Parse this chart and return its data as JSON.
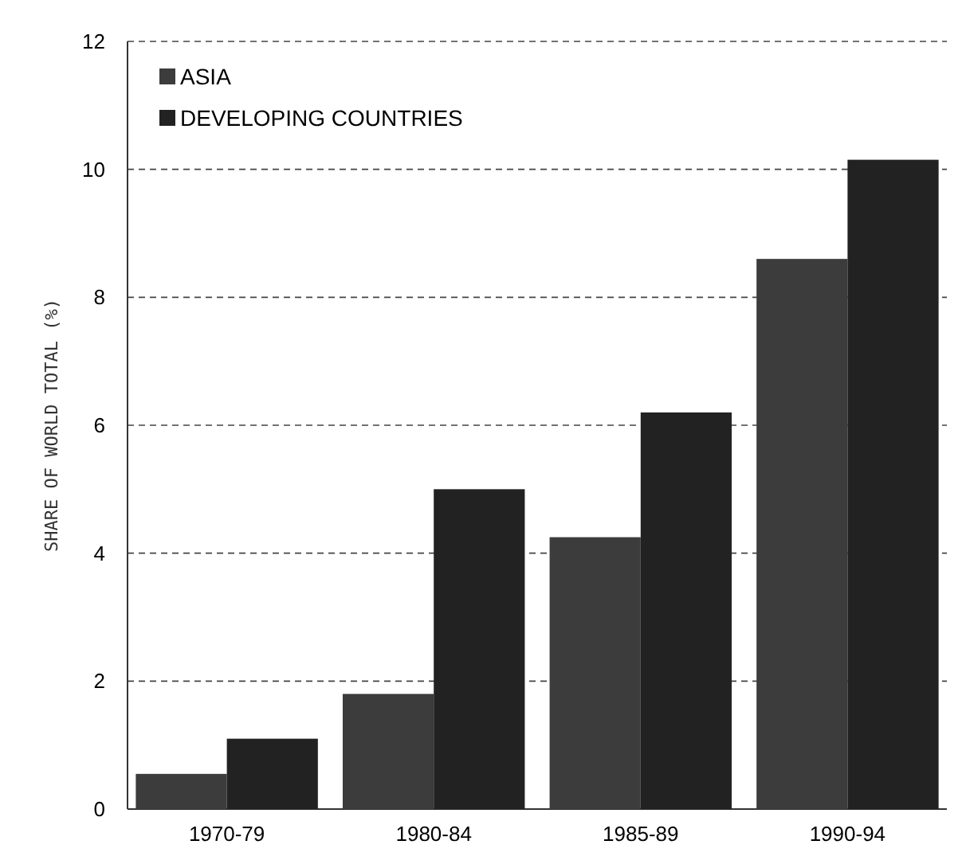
{
  "chart_data": {
    "type": "bar",
    "ylabel": "SHARE OF WORLD TOTAL (%)",
    "categories": [
      "1970-79",
      "1980-84",
      "1985-89",
      "1990-94"
    ],
    "series": [
      {
        "name": "ASIA",
        "color": "#3c3c3c",
        "values": [
          0.55,
          1.8,
          4.25,
          8.6
        ]
      },
      {
        "name": "DEVELOPING COUNTRIES",
        "color": "#222222",
        "values": [
          1.1,
          5.0,
          6.2,
          10.15
        ]
      }
    ],
    "ylim": [
      0,
      12
    ],
    "yticks": [
      0,
      2,
      4,
      6,
      8,
      10,
      12
    ],
    "grid": "y",
    "legend": "top left"
  }
}
